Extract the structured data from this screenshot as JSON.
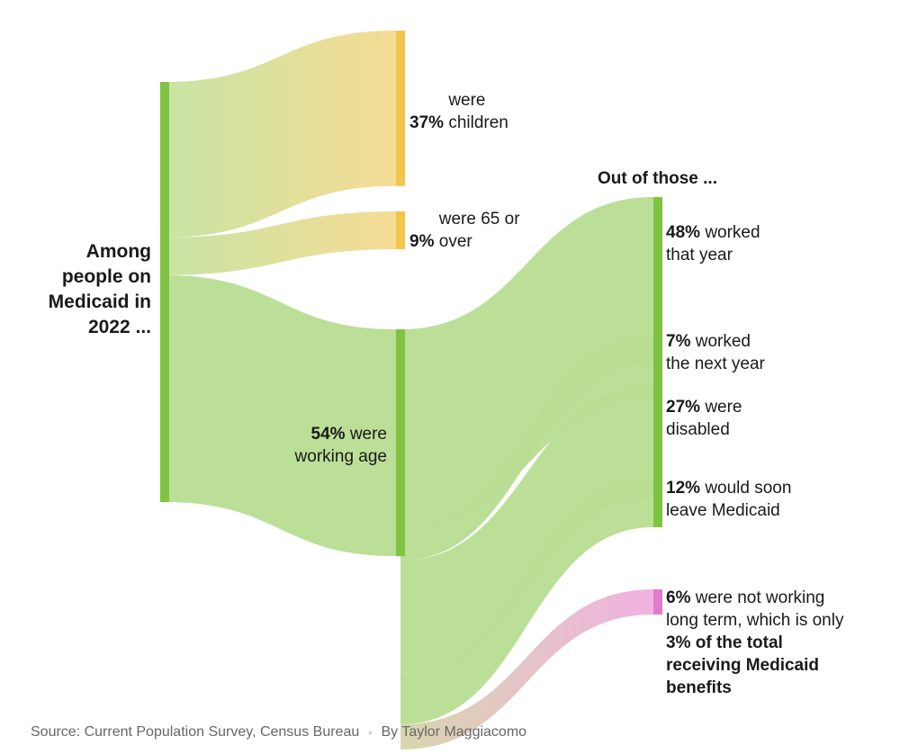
{
  "colors": {
    "green_band": "#b8dd92",
    "green_bar": "#80c241",
    "yellow_band": "#f4da8e",
    "yellow_bar": "#f2c64a",
    "pink_band": "#eeb4de",
    "pink_bar": "#e07ccc",
    "text": "#1a1a1a",
    "footer_text": "#666666"
  },
  "chart_data": {
    "type": "sankey",
    "unit": "%",
    "nodes": [
      {
        "id": "root",
        "label": "Among people on Medicaid in 2022 ...",
        "value": 100
      },
      {
        "id": "children",
        "label": "37% were children",
        "value": 37
      },
      {
        "id": "seniors",
        "label": "9% were 65 or over",
        "value": 9
      },
      {
        "id": "working_age",
        "label": "54% were working age",
        "value": 54
      },
      {
        "id": "worked",
        "label": "48% worked that year",
        "value": 48
      },
      {
        "id": "worked_next",
        "label": "7% worked the next year",
        "value": 7
      },
      {
        "id": "disabled",
        "label": "27% were disabled",
        "value": 27
      },
      {
        "id": "leave",
        "label": "12% would soon leave Medicaid",
        "value": 12
      },
      {
        "id": "not_working",
        "label": "6% were not working long term, which is only 3% of the total receiving Medicaid benefits",
        "value": 6
      }
    ],
    "links": [
      {
        "source": "root",
        "target": "children",
        "value": 37
      },
      {
        "source": "root",
        "target": "seniors",
        "value": 9
      },
      {
        "source": "root",
        "target": "working_age",
        "value": 54
      },
      {
        "source": "working_age",
        "target": "worked",
        "value": 48
      },
      {
        "source": "working_age",
        "target": "worked_next",
        "value": 7
      },
      {
        "source": "working_age",
        "target": "disabled",
        "value": 27
      },
      {
        "source": "working_age",
        "target": "leave",
        "value": 12
      },
      {
        "source": "working_age",
        "target": "not_working",
        "value": 6
      }
    ],
    "subheading": "Out of those ..."
  },
  "labels": {
    "root": "Among people on Medicaid in 2022 ...",
    "children_pct": "37%",
    "children_text": "were children",
    "seniors_pct": "9%",
    "seniors_text": "were 65 or over",
    "working_pct": "54%",
    "working_text": "were working age",
    "out_of": "Out of those ...",
    "worked_pct": "48%",
    "worked_text": "worked that year",
    "next_pct": "7%",
    "next_text": "worked the next year",
    "disabled_pct": "27%",
    "disabled_text": "were disabled",
    "leave_pct": "12%",
    "leave_text": "would soon leave Medicaid",
    "notwork_pct": "6%",
    "notwork_text": "were not working long term, which is only",
    "notwork_bold": "3% of the total receiving Medicaid benefits"
  },
  "footer": {
    "source": "Source: Current Population Survey, Census Bureau",
    "separator": "▪",
    "byline": "By Taylor Maggiacomo"
  }
}
